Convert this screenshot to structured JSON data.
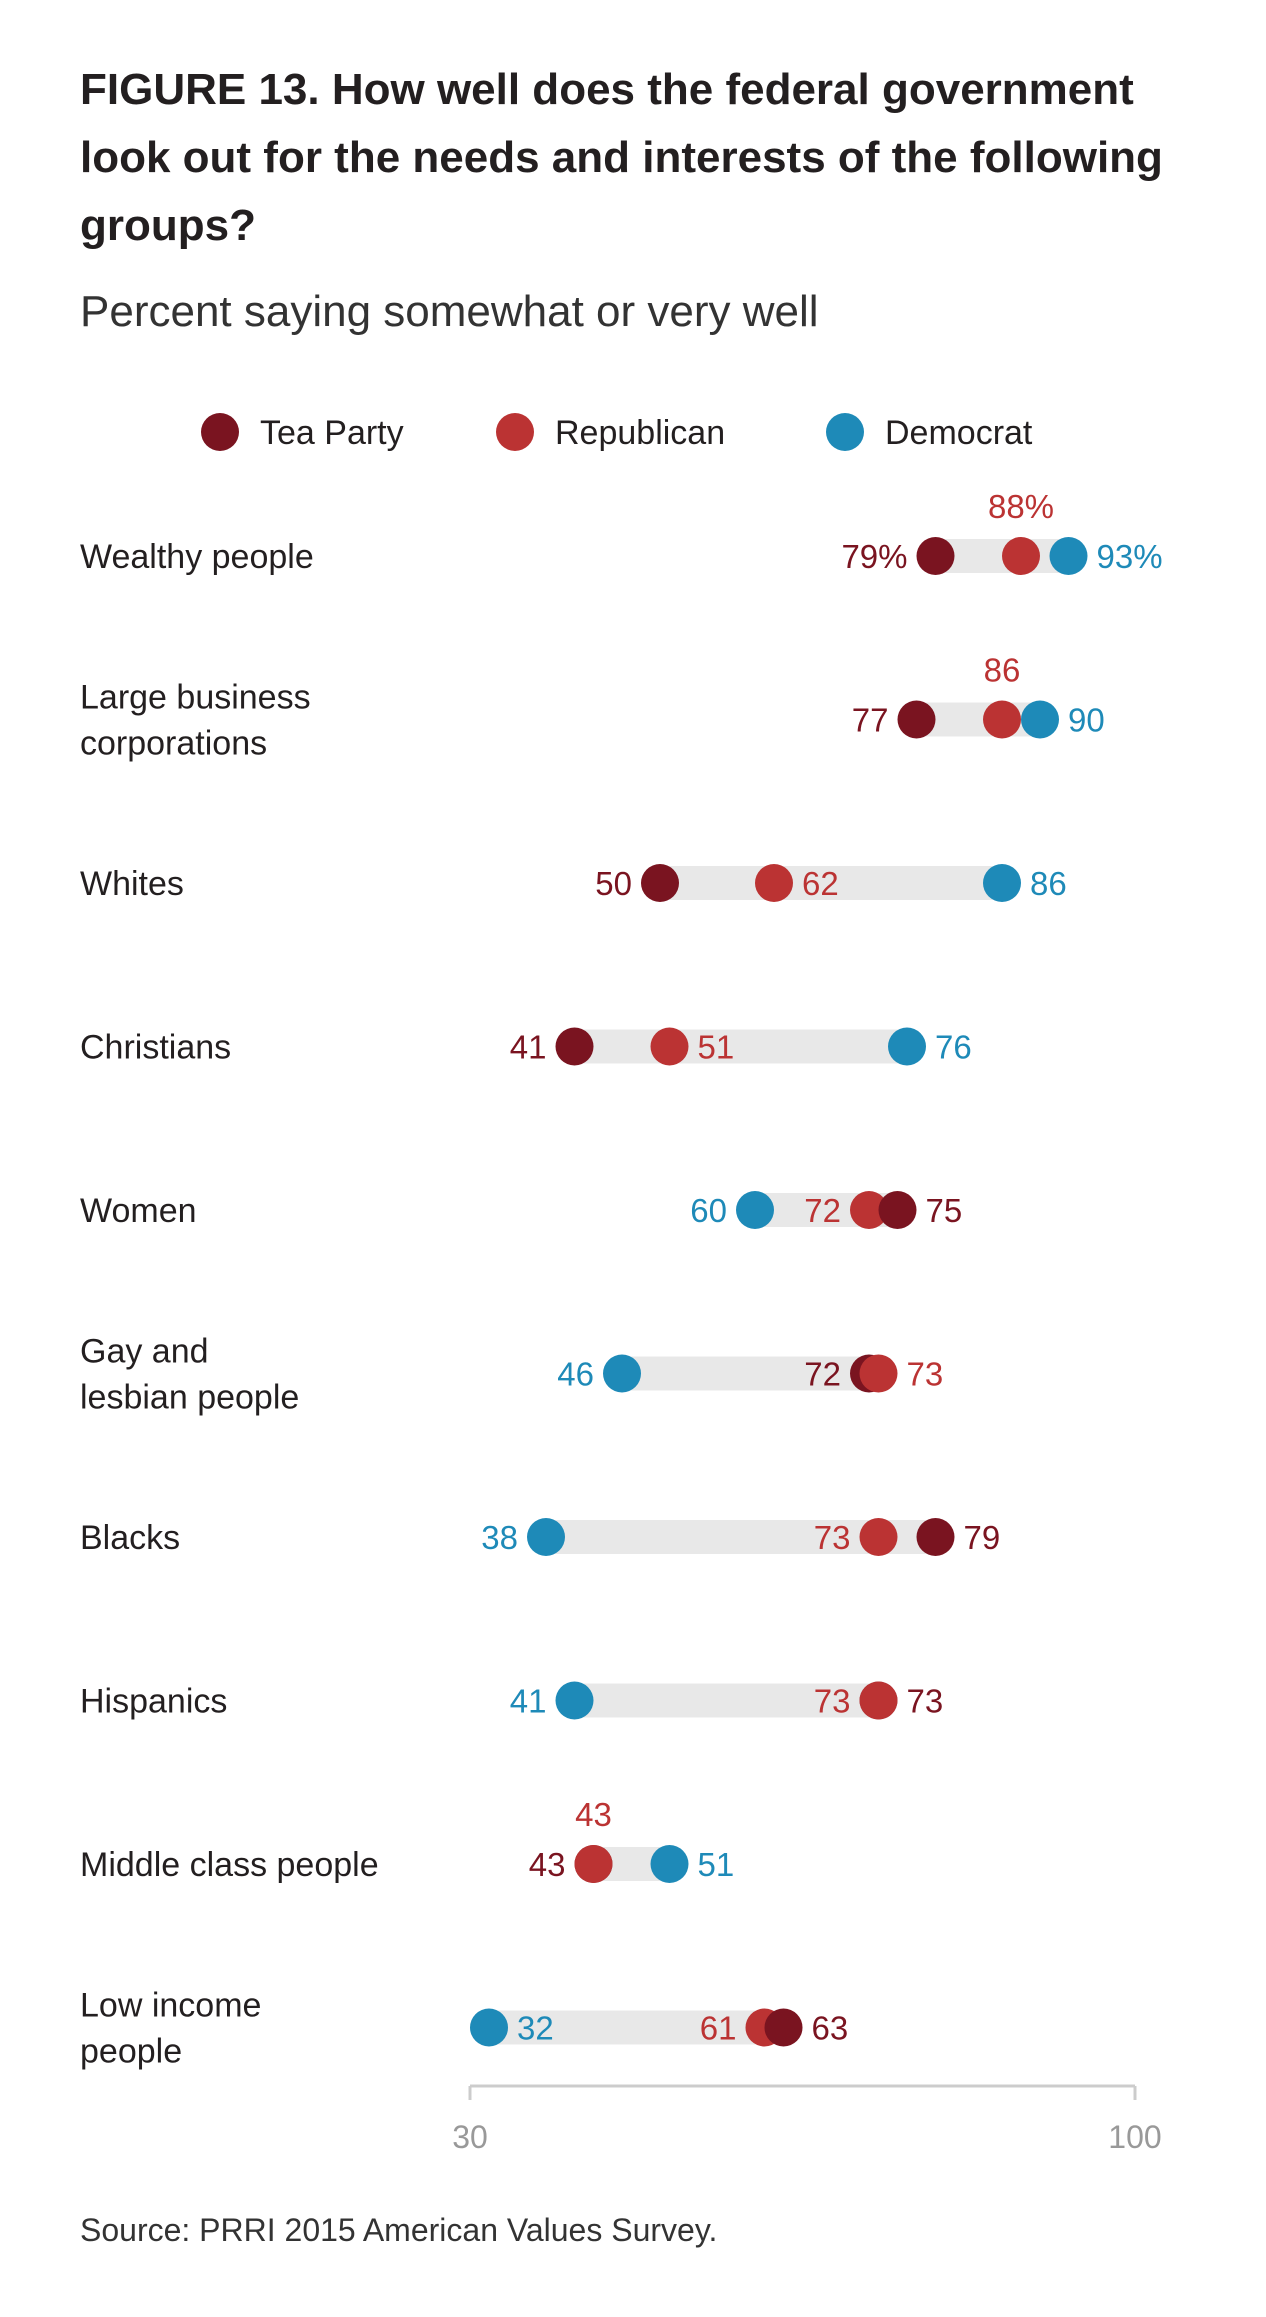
{
  "figure": {
    "title": "FIGURE 13.  How well does the federal government look out for the needs and interests of the following groups?",
    "subtitle": "Percent saying somewhat or very well",
    "source": "Source: PRRI 2015 American Values Survey."
  },
  "colors": {
    "tea_party": "#7a1420",
    "republican": "#bb3333",
    "democrat": "#1e8ab8",
    "band": "#e8e8e8",
    "axis": "#cccccc"
  },
  "chart_data": {
    "type": "scatter",
    "subtype": "dot-plot",
    "title": "FIGURE 13.  How well does the federal government look out for the needs and interests of the following groups?",
    "subtitle": "Percent saying somewhat or very well",
    "xlim": [
      30,
      100
    ],
    "x_ticks": [
      "30",
      "100"
    ],
    "legend": {
      "placement": "top",
      "entries": [
        "Tea Party",
        "Republican",
        "Democrat"
      ]
    },
    "series": [
      {
        "name": "Tea Party",
        "key": "tea_party"
      },
      {
        "name": "Republican",
        "key": "republican"
      },
      {
        "name": "Democrat",
        "key": "democrat"
      }
    ],
    "categories": [
      {
        "label": [
          "Wealthy people"
        ],
        "tea_party": 79,
        "republican": 88,
        "democrat": 93,
        "labels": {
          "tea_party": "79%",
          "republican": "88%",
          "democrat": "93%"
        },
        "pos": {
          "tea_party": "left",
          "republican": "above",
          "democrat": "right"
        }
      },
      {
        "label": [
          "Large business",
          "corporations"
        ],
        "tea_party": 77,
        "republican": 86,
        "democrat": 90,
        "labels": {
          "tea_party": "77",
          "republican": "86",
          "democrat": "90"
        },
        "pos": {
          "tea_party": "left",
          "republican": "above",
          "democrat": "right"
        }
      },
      {
        "label": [
          "Whites"
        ],
        "tea_party": 50,
        "republican": 62,
        "democrat": 86,
        "labels": {
          "tea_party": "50",
          "republican": "62",
          "democrat": "86"
        },
        "pos": {
          "tea_party": "left",
          "republican": "right",
          "democrat": "right"
        }
      },
      {
        "label": [
          "Christians"
        ],
        "tea_party": 41,
        "republican": 51,
        "democrat": 76,
        "labels": {
          "tea_party": "41",
          "republican": "51",
          "democrat": "76"
        },
        "pos": {
          "tea_party": "left",
          "republican": "right",
          "democrat": "right"
        }
      },
      {
        "label": [
          "Women"
        ],
        "tea_party": 75,
        "republican": 72,
        "democrat": 60,
        "labels": {
          "tea_party": "75",
          "republican": "72",
          "democrat": "60"
        },
        "pos": {
          "tea_party": "right",
          "republican": "left",
          "democrat": "left"
        }
      },
      {
        "label": [
          "Gay and",
          "lesbian people"
        ],
        "tea_party": 72,
        "republican": 73,
        "democrat": 46,
        "labels": {
          "tea_party": "72",
          "republican": "73",
          "democrat": "46"
        },
        "pos": {
          "tea_party": "left",
          "republican": "right",
          "democrat": "left"
        }
      },
      {
        "label": [
          "Blacks"
        ],
        "tea_party": 79,
        "republican": 73,
        "democrat": 38,
        "labels": {
          "tea_party": "79",
          "republican": "73",
          "democrat": "38"
        },
        "pos": {
          "tea_party": "right",
          "republican": "left",
          "democrat": "left"
        }
      },
      {
        "label": [
          "Hispanics"
        ],
        "tea_party": 73,
        "republican": 73,
        "democrat": 41,
        "labels": {
          "tea_party": "73",
          "republican": "73",
          "democrat": "41"
        },
        "pos": {
          "tea_party": "right",
          "republican": "left",
          "democrat": "left"
        }
      },
      {
        "label": [
          "Middle class people"
        ],
        "tea_party": 43,
        "republican": 43,
        "democrat": 51,
        "labels": {
          "tea_party": "43",
          "republican": "43",
          "democrat": "51"
        },
        "pos": {
          "tea_party": "left",
          "republican": "above",
          "democrat": "right"
        }
      },
      {
        "label": [
          "Low income",
          "people"
        ],
        "tea_party": 63,
        "republican": 61,
        "democrat": 32,
        "labels": {
          "tea_party": "63",
          "republican": "61",
          "democrat": "32"
        },
        "pos": {
          "tea_party": "right",
          "republican": "left",
          "democrat": "right"
        }
      }
    ]
  }
}
